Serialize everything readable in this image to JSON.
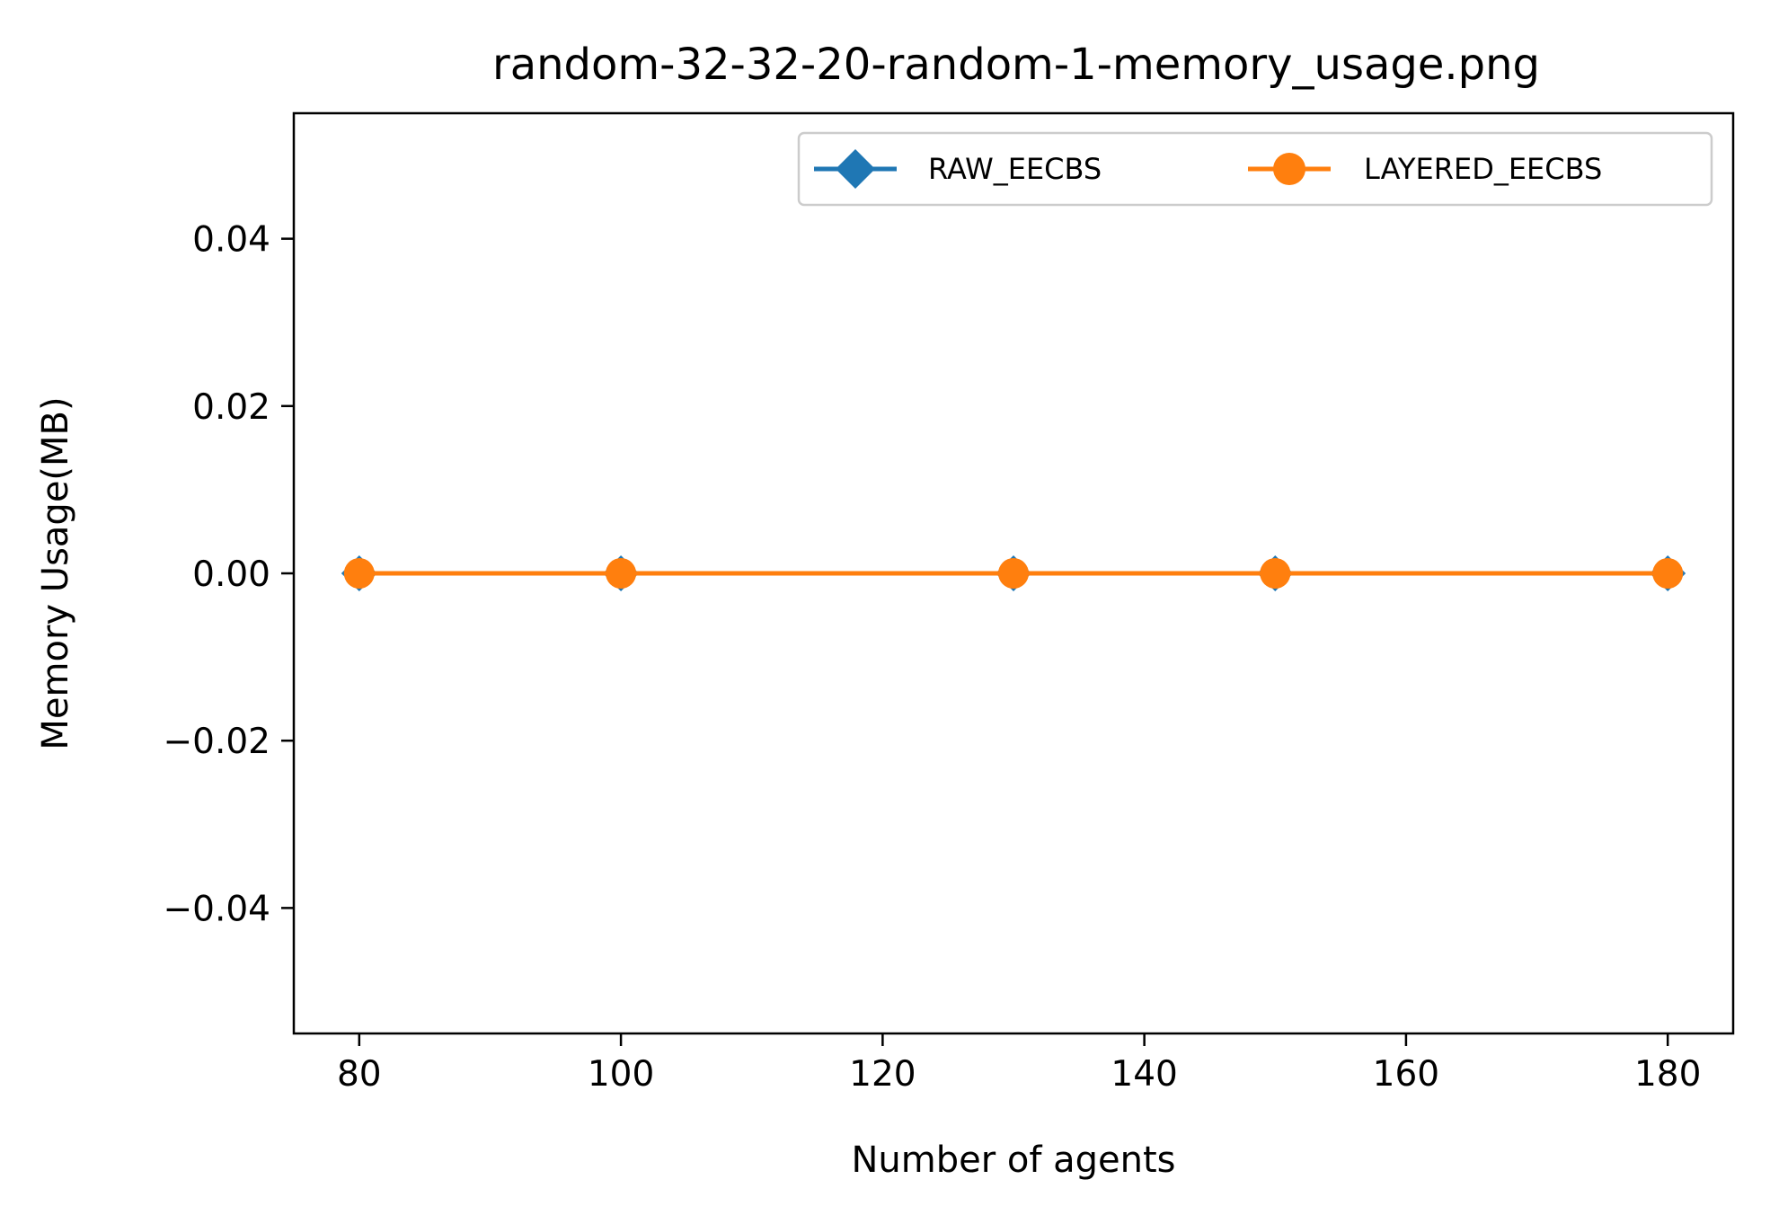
{
  "chart_data": {
    "type": "line",
    "title": "random-32-32-20-random-1-memory_usage.png",
    "xlabel": "Number of agents",
    "ylabel": "Memory Usage(MB)",
    "xlim": [
      75,
      185
    ],
    "ylim": [
      -0.055,
      0.055
    ],
    "xticks": [
      80,
      100,
      120,
      140,
      160,
      180
    ],
    "yticks": [
      0.04,
      0.02,
      0.0,
      -0.02,
      -0.04
    ],
    "xtick_labels": [
      "80",
      "100",
      "120",
      "140",
      "160",
      "180"
    ],
    "ytick_labels": [
      "0.04",
      "0.02",
      "0.00",
      "−0.02",
      "−0.04"
    ],
    "grid": false,
    "legend_placement": "upper-right",
    "legend_columns": 2,
    "series": [
      {
        "name": "RAW_EECBS",
        "marker": "diamond",
        "color": "#1f77b4",
        "x": [
          80,
          100,
          130,
          150,
          180
        ],
        "y": [
          0,
          0,
          0,
          0,
          0
        ]
      },
      {
        "name": "LAYERED_EECBS",
        "marker": "circle",
        "color": "#ff7f0e",
        "x": [
          80,
          100,
          130,
          150,
          180
        ],
        "y": [
          0,
          0,
          0,
          0,
          0
        ]
      }
    ]
  }
}
